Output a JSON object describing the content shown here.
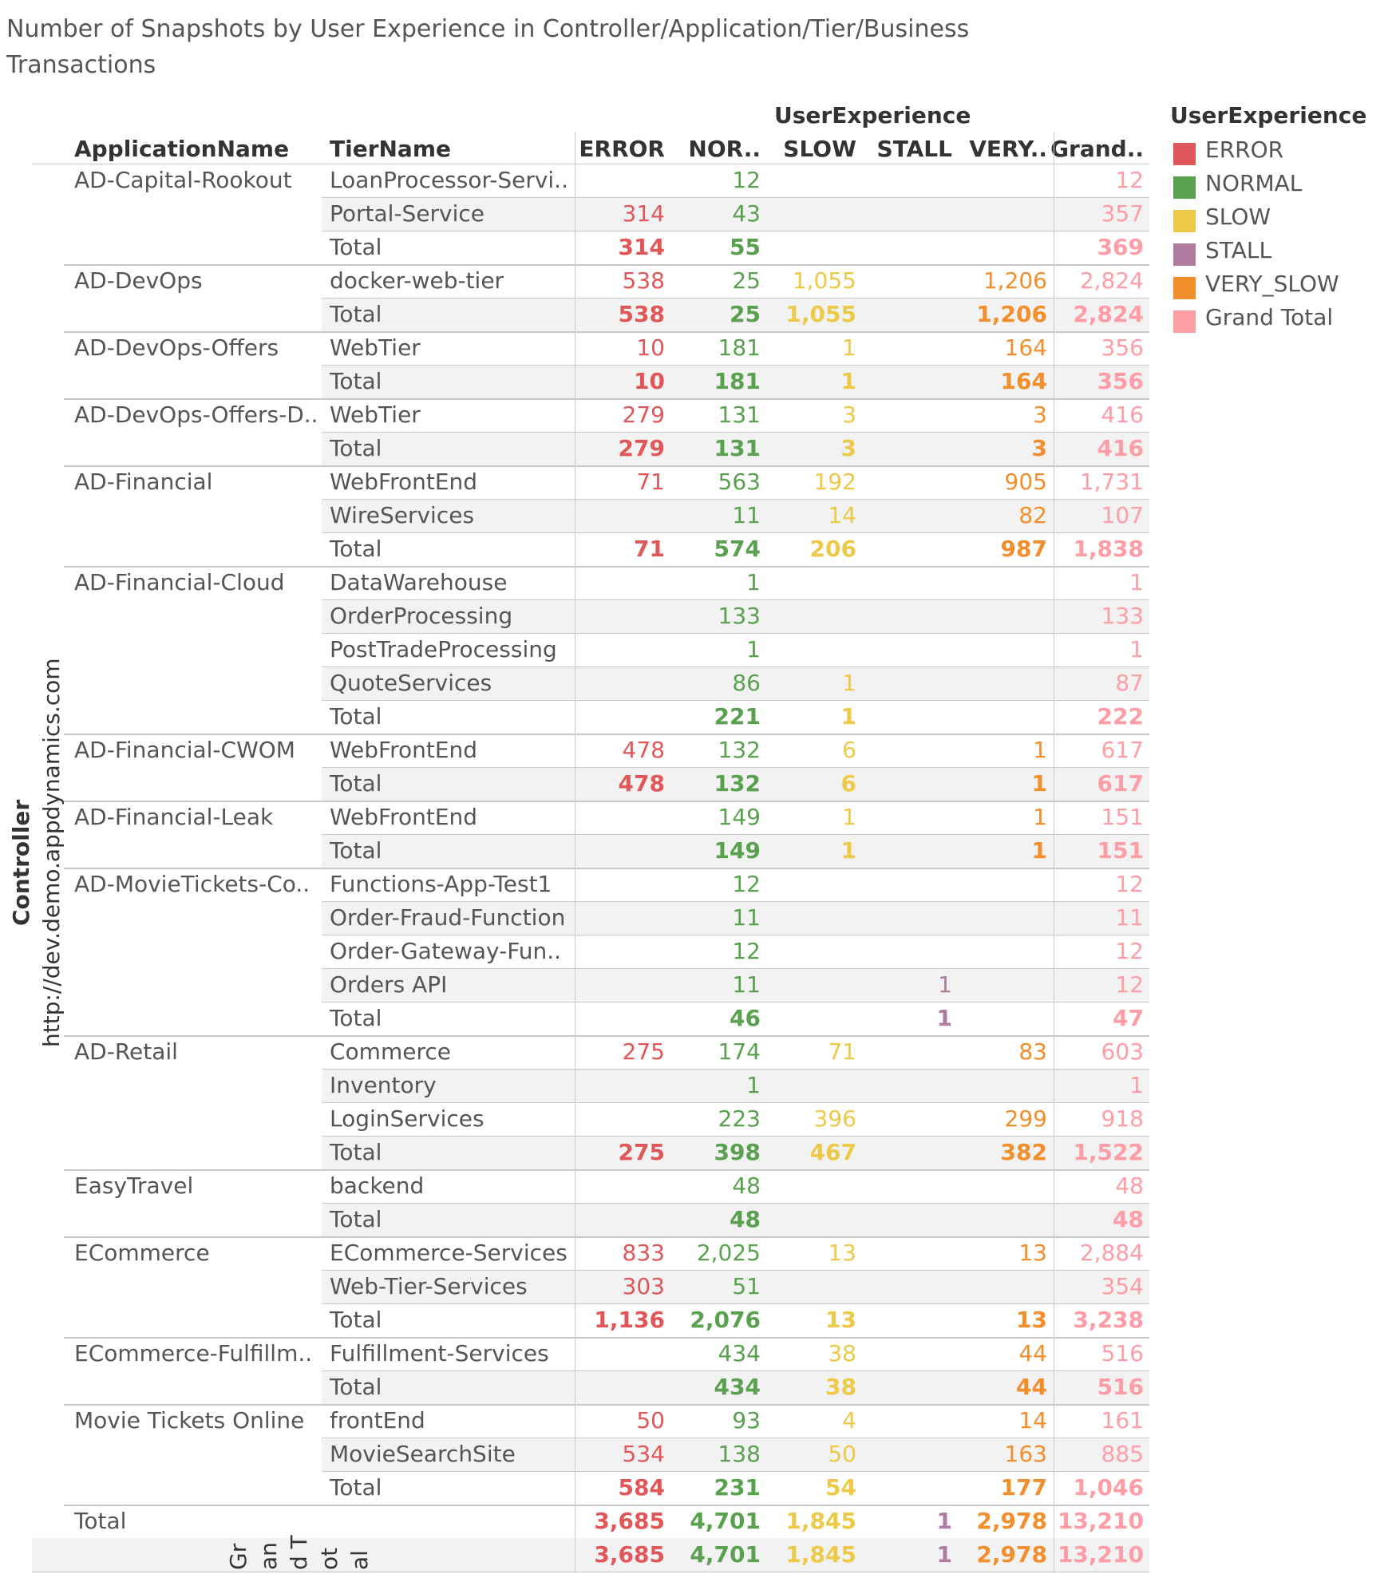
{
  "title": "Number of Snapshots by User Experience in Controller/Application/Tier/Business Transactions",
  "legend": {
    "title": "UserExperience",
    "items": [
      {
        "label": "ERROR",
        "color": "#e15759"
      },
      {
        "label": "NORMAL",
        "color": "#59a14f"
      },
      {
        "label": "SLOW",
        "color": "#edc948"
      },
      {
        "label": "STALL",
        "color": "#b07aa1"
      },
      {
        "label": "VERY_SLOW",
        "color": "#f28e2b"
      },
      {
        "label": "Grand Total",
        "color": "#ff9da7"
      }
    ]
  },
  "chart_data": {
    "type": "table",
    "title": "Number of Snapshots by User Experience in Controller/Application/Tier/Business Transactions",
    "row_headers": [
      "ApplicationName",
      "TierName"
    ],
    "column_group": "UserExperience",
    "column_headers": [
      "ERROR",
      "NOR..",
      "SLOW",
      "STALL",
      "VERY..",
      "Grand.."
    ],
    "series_colors": [
      "#e15759",
      "#59a14f",
      "#edc948",
      "#b07aa1",
      "#f28e2b",
      "#ff9da7"
    ],
    "controller_label": "Controller",
    "controller": "http://dev.demo.appdynamics.com",
    "applications": [
      {
        "name": "AD-Capital-Rookout",
        "tiers": [
          {
            "name": "LoanProcessor-Servi..",
            "values": [
              "",
              "12",
              "",
              "",
              "",
              "12"
            ]
          },
          {
            "name": "Portal-Service",
            "values": [
              "314",
              "43",
              "",
              "",
              "",
              "357"
            ]
          }
        ],
        "total": {
          "name": "Total",
          "values": [
            "314",
            "55",
            "",
            "",
            "",
            "369"
          ]
        }
      },
      {
        "name": "AD-DevOps",
        "tiers": [
          {
            "name": "docker-web-tier",
            "values": [
              "538",
              "25",
              "1,055",
              "",
              "1,206",
              "2,824"
            ]
          }
        ],
        "total": {
          "name": "Total",
          "values": [
            "538",
            "25",
            "1,055",
            "",
            "1,206",
            "2,824"
          ]
        }
      },
      {
        "name": "AD-DevOps-Offers",
        "tiers": [
          {
            "name": "WebTier",
            "values": [
              "10",
              "181",
              "1",
              "",
              "164",
              "356"
            ]
          }
        ],
        "total": {
          "name": "Total",
          "values": [
            "10",
            "181",
            "1",
            "",
            "164",
            "356"
          ]
        }
      },
      {
        "name": "AD-DevOps-Offers-D..",
        "tiers": [
          {
            "name": "WebTier",
            "values": [
              "279",
              "131",
              "3",
              "",
              "3",
              "416"
            ]
          }
        ],
        "total": {
          "name": "Total",
          "values": [
            "279",
            "131",
            "3",
            "",
            "3",
            "416"
          ]
        }
      },
      {
        "name": "AD-Financial",
        "tiers": [
          {
            "name": "WebFrontEnd",
            "values": [
              "71",
              "563",
              "192",
              "",
              "905",
              "1,731"
            ]
          },
          {
            "name": "WireServices",
            "values": [
              "",
              "11",
              "14",
              "",
              "82",
              "107"
            ]
          }
        ],
        "total": {
          "name": "Total",
          "values": [
            "71",
            "574",
            "206",
            "",
            "987",
            "1,838"
          ]
        }
      },
      {
        "name": "AD-Financial-Cloud",
        "tiers": [
          {
            "name": "DataWarehouse",
            "values": [
              "",
              "1",
              "",
              "",
              "",
              "1"
            ]
          },
          {
            "name": "OrderProcessing",
            "values": [
              "",
              "133",
              "",
              "",
              "",
              "133"
            ]
          },
          {
            "name": "PostTradeProcessing",
            "values": [
              "",
              "1",
              "",
              "",
              "",
              "1"
            ]
          },
          {
            "name": "QuoteServices",
            "values": [
              "",
              "86",
              "1",
              "",
              "",
              "87"
            ]
          }
        ],
        "total": {
          "name": "Total",
          "values": [
            "",
            "221",
            "1",
            "",
            "",
            "222"
          ]
        }
      },
      {
        "name": "AD-Financial-CWOM",
        "tiers": [
          {
            "name": "WebFrontEnd",
            "values": [
              "478",
              "132",
              "6",
              "",
              "1",
              "617"
            ]
          }
        ],
        "total": {
          "name": "Total",
          "values": [
            "478",
            "132",
            "6",
            "",
            "1",
            "617"
          ]
        }
      },
      {
        "name": "AD-Financial-Leak",
        "tiers": [
          {
            "name": "WebFrontEnd",
            "values": [
              "",
              "149",
              "1",
              "",
              "1",
              "151"
            ]
          }
        ],
        "total": {
          "name": "Total",
          "values": [
            "",
            "149",
            "1",
            "",
            "1",
            "151"
          ]
        }
      },
      {
        "name": "AD-MovieTickets-Co..",
        "tiers": [
          {
            "name": "Functions-App-Test1",
            "values": [
              "",
              "12",
              "",
              "",
              "",
              "12"
            ]
          },
          {
            "name": "Order-Fraud-Function",
            "values": [
              "",
              "11",
              "",
              "",
              "",
              "11"
            ]
          },
          {
            "name": "Order-Gateway-Fun..",
            "values": [
              "",
              "12",
              "",
              "",
              "",
              "12"
            ]
          },
          {
            "name": "Orders API",
            "values": [
              "",
              "11",
              "",
              "1",
              "",
              "12"
            ]
          }
        ],
        "total": {
          "name": "Total",
          "values": [
            "",
            "46",
            "",
            "1",
            "",
            "47"
          ]
        }
      },
      {
        "name": "AD-Retail",
        "tiers": [
          {
            "name": "Commerce",
            "values": [
              "275",
              "174",
              "71",
              "",
              "83",
              "603"
            ]
          },
          {
            "name": "Inventory",
            "values": [
              "",
              "1",
              "",
              "",
              "",
              "1"
            ]
          },
          {
            "name": "LoginServices",
            "values": [
              "",
              "223",
              "396",
              "",
              "299",
              "918"
            ]
          }
        ],
        "total": {
          "name": "Total",
          "values": [
            "275",
            "398",
            "467",
            "",
            "382",
            "1,522"
          ]
        }
      },
      {
        "name": "EasyTravel",
        "tiers": [
          {
            "name": "backend",
            "values": [
              "",
              "48",
              "",
              "",
              "",
              "48"
            ]
          }
        ],
        "total": {
          "name": "Total",
          "values": [
            "",
            "48",
            "",
            "",
            "",
            "48"
          ]
        }
      },
      {
        "name": "ECommerce",
        "tiers": [
          {
            "name": "ECommerce-Services",
            "values": [
              "833",
              "2,025",
              "13",
              "",
              "13",
              "2,884"
            ]
          },
          {
            "name": "Web-Tier-Services",
            "values": [
              "303",
              "51",
              "",
              "",
              "",
              "354"
            ]
          }
        ],
        "total": {
          "name": "Total",
          "values": [
            "1,136",
            "2,076",
            "13",
            "",
            "13",
            "3,238"
          ]
        }
      },
      {
        "name": "ECommerce-Fulfillm..",
        "tiers": [
          {
            "name": "Fulfillment-Services",
            "values": [
              "",
              "434",
              "38",
              "",
              "44",
              "516"
            ]
          }
        ],
        "total": {
          "name": "Total",
          "values": [
            "",
            "434",
            "38",
            "",
            "44",
            "516"
          ]
        }
      },
      {
        "name": "Movie Tickets Online",
        "tiers": [
          {
            "name": "frontEnd",
            "values": [
              "50",
              "93",
              "4",
              "",
              "14",
              "161"
            ]
          },
          {
            "name": "MovieSearchSite",
            "values": [
              "534",
              "138",
              "50",
              "",
              "163",
              "885"
            ]
          }
        ],
        "total": {
          "name": "Total",
          "values": [
            "584",
            "231",
            "54",
            "",
            "177",
            "1,046"
          ]
        }
      }
    ],
    "controller_total": {
      "name": "Total",
      "values": [
        "3,685",
        "4,701",
        "1,845",
        "1",
        "2,978",
        "13,210"
      ]
    },
    "grand_total": {
      "name": "Grand Total",
      "fragments": [
        "Gr",
        "an",
        "d T",
        "ot",
        "al"
      ],
      "values": [
        "3,685",
        "4,701",
        "1,845",
        "1",
        "2,978",
        "13,210"
      ]
    }
  }
}
